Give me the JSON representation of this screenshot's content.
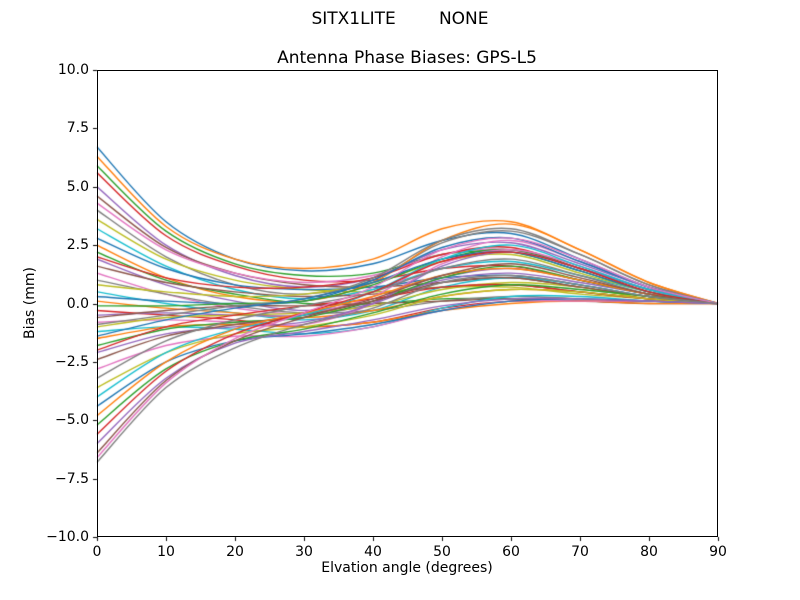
{
  "figure": {
    "background": "#ffffff",
    "border_color": "#000000",
    "tick_color": "#000000"
  },
  "chart_data": {
    "type": "line",
    "suptitle": "SITX1LITE        NONE",
    "title": "Antenna Phase Biases: GPS-L5",
    "xlabel": "Elvation angle (degrees)",
    "ylabel": "Bias (mm)",
    "xlim": [
      0,
      90
    ],
    "ylim": [
      -10,
      10
    ],
    "grid": false,
    "legend": "none",
    "xticks": [
      0,
      10,
      20,
      30,
      40,
      50,
      60,
      70,
      80,
      90
    ],
    "xtick_labels": [
      "0",
      "10",
      "20",
      "30",
      "40",
      "50",
      "60",
      "70",
      "80",
      "90"
    ],
    "yticks": [
      10.0,
      7.5,
      5.0,
      2.5,
      0.0,
      -2.5,
      -5.0,
      -7.5,
      -10.0
    ],
    "ytick_labels": [
      "10.0",
      "7.5",
      "5.0",
      "2.5",
      "0.0",
      "−2.5",
      "−5.0",
      "−7.5",
      "−10.0"
    ],
    "x": [
      0,
      10,
      20,
      30,
      40,
      50,
      60,
      70,
      80,
      90
    ],
    "series": [
      {
        "color": "#1f77b4",
        "values": [
          6.7,
          3.5,
          1.9,
          1.4,
          1.7,
          2.7,
          3.0,
          1.9,
          0.7,
          0.0
        ]
      },
      {
        "color": "#ff7f0e",
        "values": [
          6.3,
          3.3,
          1.9,
          1.5,
          1.9,
          3.2,
          3.5,
          2.3,
          0.9,
          0.0
        ]
      },
      {
        "color": "#2ca02c",
        "values": [
          5.9,
          3.1,
          1.7,
          1.2,
          1.3,
          2.1,
          2.2,
          1.4,
          0.5,
          0.0
        ]
      },
      {
        "color": "#d62728",
        "values": [
          5.6,
          2.9,
          1.6,
          1.0,
          1.0,
          1.5,
          1.6,
          1.0,
          0.4,
          0.0
        ]
      },
      {
        "color": "#9467bd",
        "values": [
          5.0,
          2.5,
          1.2,
          0.7,
          1.1,
          2.3,
          2.6,
          1.7,
          0.7,
          0.0
        ]
      },
      {
        "color": "#8c564b",
        "values": [
          4.6,
          2.4,
          1.3,
          0.8,
          0.7,
          0.9,
          1.1,
          0.7,
          0.3,
          0.0
        ]
      },
      {
        "color": "#e377c2",
        "values": [
          4.3,
          2.3,
          1.3,
          0.9,
          1.2,
          2.1,
          2.3,
          1.5,
          0.6,
          0.0
        ]
      },
      {
        "color": "#7f7f7f",
        "values": [
          4.0,
          2.0,
          0.8,
          0.4,
          1.0,
          2.6,
          3.1,
          2.1,
          0.8,
          0.0
        ]
      },
      {
        "color": "#bcbd22",
        "values": [
          3.6,
          1.9,
          1.0,
          0.6,
          0.5,
          0.7,
          0.7,
          0.4,
          0.2,
          0.0
        ]
      },
      {
        "color": "#17becf",
        "values": [
          3.2,
          1.6,
          0.6,
          0.2,
          0.6,
          1.5,
          1.8,
          1.2,
          0.5,
          0.0
        ]
      },
      {
        "color": "#1f77b4",
        "values": [
          2.8,
          1.5,
          0.8,
          0.6,
          0.7,
          1.1,
          1.2,
          0.8,
          0.3,
          0.0
        ]
      },
      {
        "color": "#ff7f0e",
        "values": [
          2.5,
          1.1,
          0.3,
          0.1,
          0.9,
          2.7,
          3.4,
          2.3,
          0.9,
          0.0
        ]
      },
      {
        "color": "#2ca02c",
        "values": [
          2.2,
          1.0,
          0.4,
          0.0,
          0.0,
          0.2,
          0.2,
          0.1,
          0.1,
          0.0
        ]
      },
      {
        "color": "#d62728",
        "values": [
          2.0,
          1.1,
          0.7,
          0.7,
          1.1,
          2.1,
          2.4,
          1.5,
          0.6,
          0.0
        ]
      },
      {
        "color": "#9467bd",
        "values": [
          1.9,
          0.8,
          0.1,
          -0.3,
          0.1,
          1.0,
          1.3,
          0.9,
          0.4,
          0.0
        ]
      },
      {
        "color": "#8c564b",
        "values": [
          1.6,
          0.9,
          0.5,
          0.3,
          0.4,
          0.7,
          0.8,
          0.5,
          0.2,
          0.0
        ]
      },
      {
        "color": "#e377c2",
        "values": [
          1.3,
          0.4,
          -0.2,
          -0.4,
          0.3,
          2.0,
          2.7,
          1.8,
          0.7,
          0.0
        ]
      },
      {
        "color": "#7f7f7f",
        "values": [
          1.0,
          0.4,
          -0.1,
          -0.4,
          -0.3,
          0.1,
          0.3,
          0.2,
          0.1,
          0.0
        ]
      },
      {
        "color": "#bcbd22",
        "values": [
          0.8,
          0.5,
          0.3,
          0.4,
          0.9,
          1.8,
          2.1,
          1.3,
          0.5,
          0.0
        ]
      },
      {
        "color": "#17becf",
        "values": [
          0.5,
          0.0,
          -0.4,
          -0.7,
          -0.3,
          0.7,
          1.1,
          0.8,
          0.3,
          0.0
        ]
      },
      {
        "color": "#1f77b4",
        "values": [
          0.3,
          0.1,
          0.0,
          0.1,
          1.0,
          2.4,
          2.8,
          1.8,
          0.7,
          0.0
        ]
      },
      {
        "color": "#ff7f0e",
        "values": [
          0.1,
          -0.2,
          -0.4,
          -0.6,
          -0.3,
          0.3,
          0.6,
          0.5,
          0.2,
          0.0
        ]
      },
      {
        "color": "#2ca02c",
        "values": [
          -0.1,
          -0.1,
          0.0,
          0.1,
          0.8,
          1.9,
          2.3,
          1.5,
          0.6,
          0.0
        ]
      },
      {
        "color": "#d62728",
        "values": [
          -0.3,
          -0.5,
          -0.7,
          -1.0,
          -0.8,
          -0.2,
          0.1,
          0.1,
          0.1,
          0.0
        ]
      },
      {
        "color": "#9467bd",
        "values": [
          -0.5,
          -0.4,
          -0.5,
          -0.5,
          0.0,
          1.1,
          1.5,
          1.0,
          0.4,
          0.0
        ]
      },
      {
        "color": "#8c564b",
        "values": [
          -0.6,
          -0.3,
          -0.1,
          -0.1,
          0.0,
          0.1,
          0.2,
          0.1,
          0.0,
          0.0
        ]
      },
      {
        "color": "#e377c2",
        "values": [
          -0.8,
          -0.7,
          -0.8,
          -0.9,
          0.0,
          1.7,
          2.3,
          1.6,
          0.6,
          0.0
        ]
      },
      {
        "color": "#7f7f7f",
        "values": [
          -0.9,
          -0.5,
          -0.1,
          0.2,
          1.1,
          2.7,
          3.2,
          2.1,
          0.8,
          0.0
        ]
      },
      {
        "color": "#bcbd22",
        "values": [
          -1.0,
          -0.6,
          -0.5,
          -0.4,
          -0.1,
          0.6,
          0.9,
          0.7,
          0.2,
          0.0
        ]
      },
      {
        "color": "#17becf",
        "values": [
          -1.2,
          -1.0,
          -1.1,
          -1.3,
          -1.0,
          -0.2,
          0.3,
          0.3,
          0.1,
          0.0
        ]
      },
      {
        "color": "#1f77b4",
        "values": [
          -1.4,
          -0.7,
          -0.2,
          0.2,
          0.9,
          1.9,
          2.2,
          1.4,
          0.5,
          0.0
        ]
      },
      {
        "color": "#ff7f0e",
        "values": [
          -1.5,
          -1.0,
          -0.9,
          -1.0,
          -0.8,
          -0.3,
          0.0,
          0.1,
          0.0,
          0.0
        ]
      },
      {
        "color": "#2ca02c",
        "values": [
          -1.8,
          -1.1,
          -0.8,
          -0.6,
          0.1,
          1.1,
          1.6,
          1.0,
          0.4,
          0.0
        ]
      },
      {
        "color": "#d62728",
        "values": [
          -2.0,
          -1.0,
          -0.5,
          -0.1,
          0.2,
          0.7,
          0.8,
          0.5,
          0.2,
          0.0
        ]
      },
      {
        "color": "#9467bd",
        "values": [
          -2.1,
          -1.3,
          -1.0,
          -0.8,
          0.0,
          1.6,
          2.2,
          1.5,
          0.6,
          0.0
        ]
      },
      {
        "color": "#8c564b",
        "values": [
          -2.4,
          -1.4,
          -0.9,
          -0.5,
          0.1,
          0.9,
          1.1,
          0.7,
          0.3,
          0.0
        ]
      },
      {
        "color": "#e377c2",
        "values": [
          -2.8,
          -1.8,
          -1.4,
          -1.4,
          -1.0,
          -0.3,
          0.1,
          0.1,
          0.1,
          0.0
        ]
      },
      {
        "color": "#7f7f7f",
        "values": [
          -3.2,
          -1.6,
          -0.7,
          -0.1,
          0.5,
          1.5,
          1.9,
          1.2,
          0.4,
          0.0
        ]
      },
      {
        "color": "#bcbd22",
        "values": [
          -3.6,
          -2.1,
          -1.3,
          -1.0,
          -0.5,
          0.3,
          0.6,
          0.5,
          0.2,
          0.0
        ]
      },
      {
        "color": "#17becf",
        "values": [
          -4.0,
          -2.1,
          -1.1,
          -0.5,
          0.5,
          1.9,
          2.5,
          1.6,
          0.6,
          0.0
        ]
      },
      {
        "color": "#1f77b4",
        "values": [
          -4.4,
          -2.5,
          -1.6,
          -1.3,
          -0.9,
          -0.3,
          0.1,
          0.2,
          0.1,
          0.0
        ]
      },
      {
        "color": "#ff7f0e",
        "values": [
          -4.8,
          -2.5,
          -1.1,
          -0.4,
          0.3,
          1.2,
          1.5,
          1.0,
          0.4,
          0.0
        ]
      },
      {
        "color": "#2ca02c",
        "values": [
          -5.2,
          -2.8,
          -1.6,
          -1.1,
          -0.4,
          0.4,
          0.8,
          0.6,
          0.3,
          0.0
        ]
      },
      {
        "color": "#d62728",
        "values": [
          -5.6,
          -2.9,
          -1.3,
          -0.4,
          0.5,
          1.8,
          2.2,
          1.5,
          0.5,
          0.0
        ]
      },
      {
        "color": "#9467bd",
        "values": [
          -6.0,
          -3.2,
          -1.7,
          -1.2,
          -0.7,
          -0.1,
          0.2,
          0.2,
          0.1,
          0.0
        ]
      },
      {
        "color": "#8c564b",
        "values": [
          -6.4,
          -3.3,
          -1.6,
          -0.6,
          0.2,
          1.2,
          1.7,
          1.1,
          0.4,
          0.0
        ]
      },
      {
        "color": "#e377c2",
        "values": [
          -6.6,
          -3.4,
          -1.5,
          -0.4,
          0.7,
          2.3,
          2.8,
          1.9,
          0.7,
          0.0
        ]
      },
      {
        "color": "#7f7f7f",
        "values": [
          -6.8,
          -3.6,
          -1.9,
          -0.9,
          -0.2,
          0.9,
          1.2,
          0.8,
          0.3,
          0.0
        ]
      }
    ]
  }
}
